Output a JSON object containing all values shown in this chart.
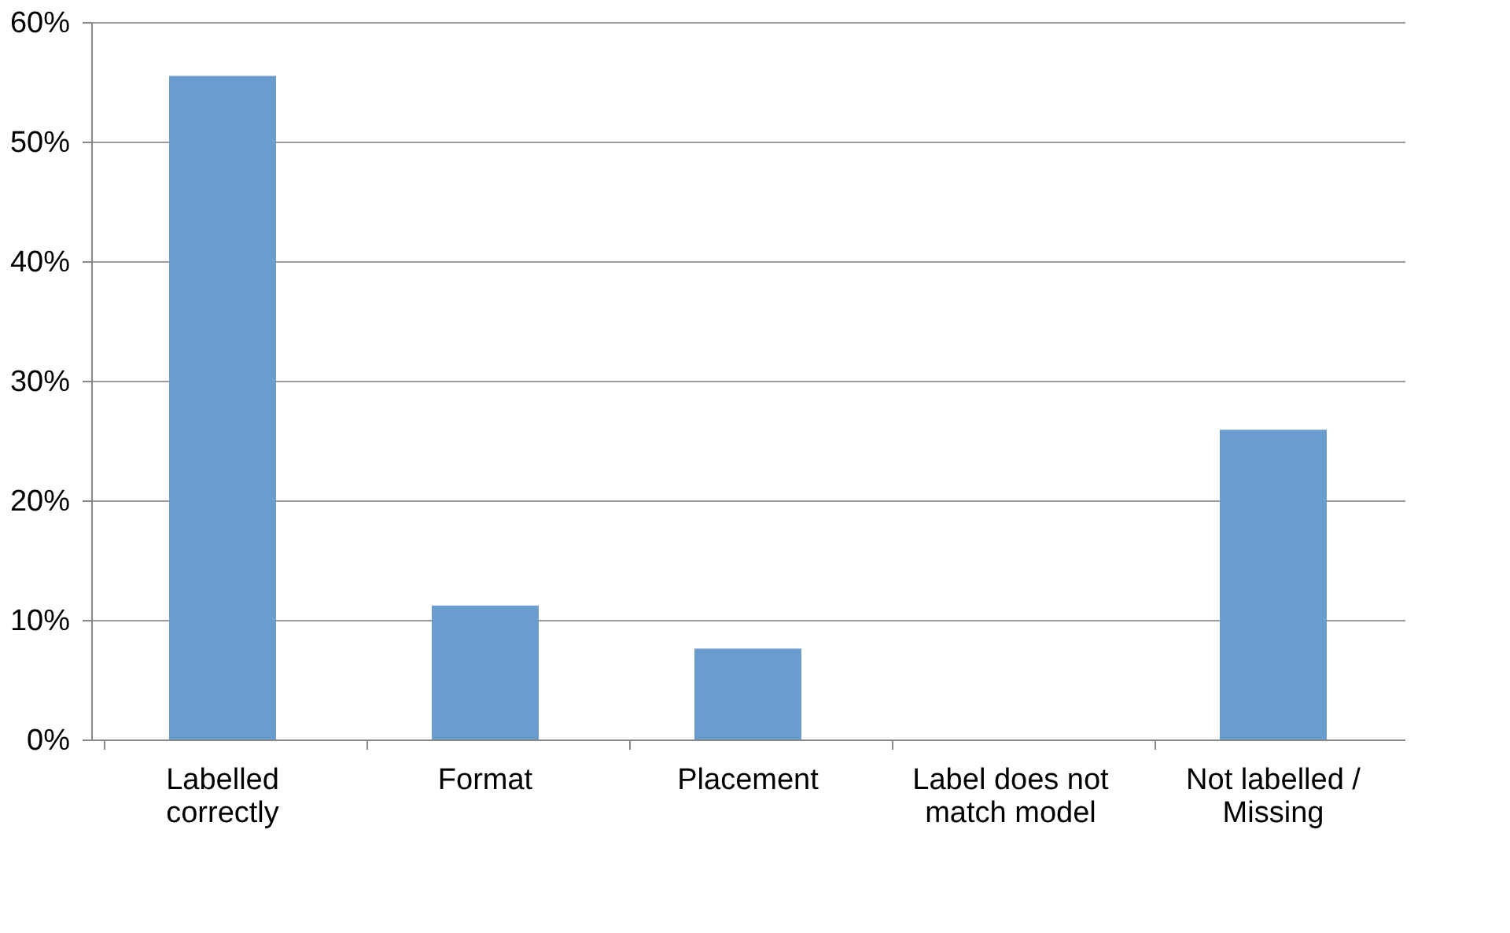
{
  "chart_data": {
    "type": "bar",
    "categories": [
      "Labelled correctly",
      "Format",
      "Placement",
      "Label does not match model",
      "Not labelled / Missing"
    ],
    "values": [
      55.5,
      11.2,
      7.6,
      0,
      25.9
    ],
    "color": "#6a9ccd",
    "ylim": [
      0,
      60
    ],
    "yticks": [
      {
        "value": 0,
        "label": "0%"
      },
      {
        "value": 10,
        "label": "10%"
      },
      {
        "value": 20,
        "label": "20%"
      },
      {
        "value": 30,
        "label": "30%"
      },
      {
        "value": 40,
        "label": "40%"
      },
      {
        "value": 50,
        "label": "50%"
      },
      {
        "value": 60,
        "label": "60%"
      }
    ],
    "grid": "y"
  }
}
